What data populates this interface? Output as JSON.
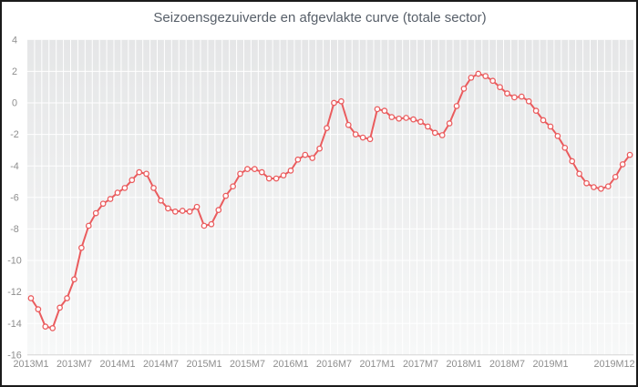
{
  "chart": {
    "line_color": "#ea5c5e",
    "marker_fill": "#ffffff",
    "plot_bg_top": "#e5e6e7",
    "plot_bg_bottom": "#f7f8f8",
    "grid_color": "#ffffff",
    "axis_line_color": "#d6d6d6",
    "title_color": "#575f69",
    "label_color": "#8e8e8e"
  },
  "chart_data": {
    "type": "line",
    "title": "Seizoensgezuiverde en afgevlakte curve (totale sector)",
    "xlabel": "",
    "ylabel": "",
    "ylim": [
      -16,
      4
    ],
    "y_ticks": [
      4,
      2,
      0,
      -2,
      -4,
      -6,
      -8,
      -10,
      -12,
      -14,
      -16
    ],
    "x_tick_labels": [
      "2013M1",
      "2013M7",
      "2014M1",
      "2014M7",
      "2015M1",
      "2015M7",
      "2016M1",
      "2016M7",
      "2017M1",
      "2017M7",
      "2018M1",
      "2018M7",
      "2019M1",
      "2019M12"
    ],
    "grid": true,
    "legend": "none",
    "marker": "circle",
    "x": [
      "2013M1",
      "2013M2",
      "2013M3",
      "2013M4",
      "2013M5",
      "2013M6",
      "2013M7",
      "2013M8",
      "2013M9",
      "2013M10",
      "2013M11",
      "2013M12",
      "2014M1",
      "2014M2",
      "2014M3",
      "2014M4",
      "2014M5",
      "2014M6",
      "2014M7",
      "2014M8",
      "2014M9",
      "2014M10",
      "2014M11",
      "2014M12",
      "2015M1",
      "2015M2",
      "2015M3",
      "2015M4",
      "2015M5",
      "2015M6",
      "2015M7",
      "2015M8",
      "2015M9",
      "2015M10",
      "2015M11",
      "2015M12",
      "2016M1",
      "2016M2",
      "2016M3",
      "2016M4",
      "2016M5",
      "2016M6",
      "2016M7",
      "2016M8",
      "2016M9",
      "2016M10",
      "2016M11",
      "2016M12",
      "2017M1",
      "2017M2",
      "2017M3",
      "2017M4",
      "2017M5",
      "2017M6",
      "2017M7",
      "2017M8",
      "2017M9",
      "2017M10",
      "2017M11",
      "2017M12",
      "2018M1",
      "2018M2",
      "2018M3",
      "2018M4",
      "2018M5",
      "2018M6",
      "2018M7",
      "2018M8",
      "2018M9",
      "2018M10",
      "2018M11",
      "2018M12",
      "2019M1",
      "2019M2",
      "2019M3",
      "2019M4",
      "2019M5",
      "2019M6",
      "2019M7",
      "2019M8",
      "2019M9",
      "2019M10",
      "2019M11",
      "2019M12"
    ],
    "values": [
      -12.4,
      -13.1,
      -14.2,
      -14.3,
      -13.0,
      -12.4,
      -11.2,
      -9.2,
      -7.8,
      -7.0,
      -6.4,
      -6.1,
      -5.7,
      -5.4,
      -4.9,
      -4.4,
      -4.5,
      -5.4,
      -6.2,
      -6.7,
      -6.9,
      -6.85,
      -6.9,
      -6.6,
      -7.8,
      -7.7,
      -6.8,
      -5.9,
      -5.3,
      -4.5,
      -4.2,
      -4.2,
      -4.4,
      -4.8,
      -4.8,
      -4.6,
      -4.3,
      -3.6,
      -3.3,
      -3.5,
      -2.9,
      -1.6,
      0.0,
      0.1,
      -1.4,
      -2.0,
      -2.2,
      -2.3,
      -0.4,
      -0.5,
      -0.9,
      -1.0,
      -0.95,
      -1.05,
      -1.2,
      -1.5,
      -1.9,
      -2.05,
      -1.3,
      -0.2,
      0.9,
      1.6,
      1.85,
      1.7,
      1.4,
      1.0,
      0.6,
      0.35,
      0.4,
      0.1,
      -0.5,
      -1.1,
      -1.5,
      -2.1,
      -2.85,
      -3.7,
      -4.5,
      -5.1,
      -5.35,
      -5.45,
      -5.3,
      -4.7,
      -3.9,
      -3.3
    ]
  }
}
